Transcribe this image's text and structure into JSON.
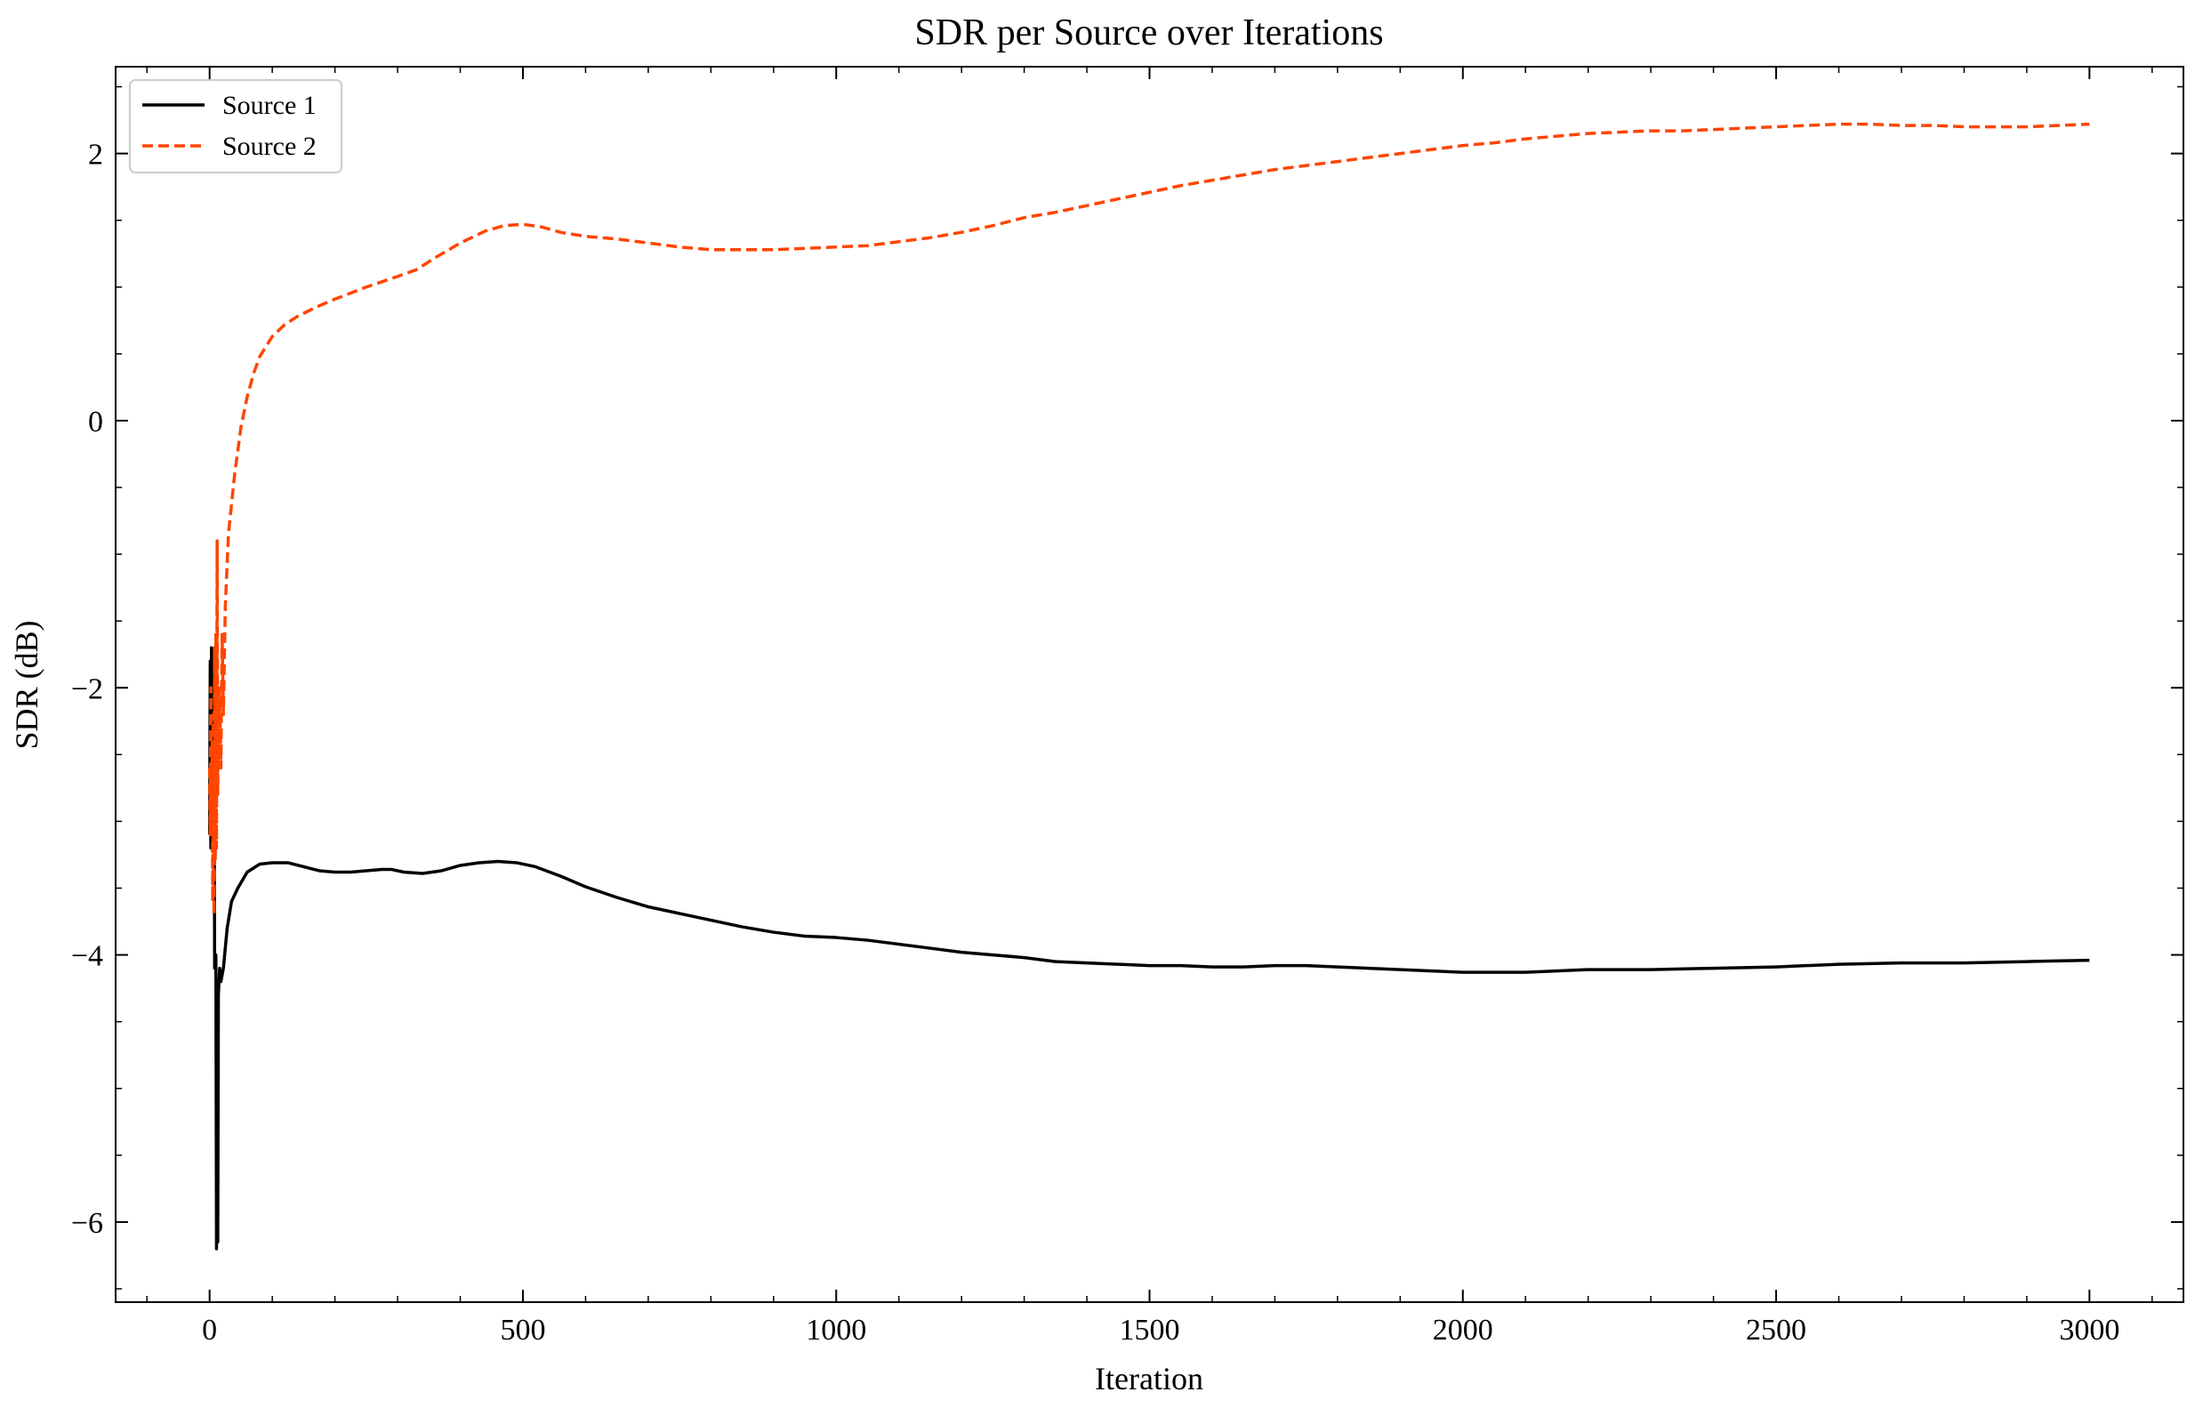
{
  "chart_data": {
    "type": "line",
    "title": "SDR per Source over Iterations",
    "xlabel": "Iteration",
    "ylabel": "SDR (dB)",
    "xlim": [
      -150,
      3150
    ],
    "ylim": [
      -6.6,
      2.65
    ],
    "xticks": [
      0,
      500,
      1000,
      1500,
      2000,
      2500,
      3000
    ],
    "xtick_labels": [
      "0",
      "500",
      "1000",
      "1500",
      "2000",
      "2500",
      "3000"
    ],
    "yticks": [
      -6,
      -4,
      -2,
      0,
      2
    ],
    "ytick_labels": [
      "−6",
      "−4",
      "−2",
      "0",
      "2"
    ],
    "legend_position": "top-left",
    "grid": false,
    "series": [
      {
        "name": "Source 1",
        "color": "#000000",
        "style": "solid",
        "points": [
          [
            0,
            -3.1
          ],
          [
            1,
            -1.8
          ],
          [
            2,
            -3.2
          ],
          [
            3,
            -1.7
          ],
          [
            4,
            -2.6
          ],
          [
            5,
            -1.9
          ],
          [
            6,
            -2.9
          ],
          [
            7,
            -2.0
          ],
          [
            8,
            -4.1
          ],
          [
            9,
            -4.1
          ],
          [
            10,
            -4.0
          ],
          [
            11,
            -6.2
          ],
          [
            12,
            -5.4
          ],
          [
            13,
            -6.15
          ],
          [
            14,
            -4.3
          ],
          [
            16,
            -4.1
          ],
          [
            18,
            -4.2
          ],
          [
            22,
            -4.1
          ],
          [
            28,
            -3.8
          ],
          [
            35,
            -3.6
          ],
          [
            45,
            -3.5
          ],
          [
            60,
            -3.38
          ],
          [
            80,
            -3.32
          ],
          [
            100,
            -3.31
          ],
          [
            125,
            -3.31
          ],
          [
            150,
            -3.34
          ],
          [
            175,
            -3.37
          ],
          [
            200,
            -3.38
          ],
          [
            225,
            -3.38
          ],
          [
            250,
            -3.37
          ],
          [
            275,
            -3.36
          ],
          [
            290,
            -3.36
          ],
          [
            310,
            -3.38
          ],
          [
            340,
            -3.39
          ],
          [
            370,
            -3.37
          ],
          [
            400,
            -3.33
          ],
          [
            430,
            -3.31
          ],
          [
            460,
            -3.3
          ],
          [
            490,
            -3.31
          ],
          [
            520,
            -3.34
          ],
          [
            560,
            -3.41
          ],
          [
            600,
            -3.49
          ],
          [
            650,
            -3.57
          ],
          [
            700,
            -3.64
          ],
          [
            750,
            -3.69
          ],
          [
            800,
            -3.74
          ],
          [
            850,
            -3.79
          ],
          [
            900,
            -3.83
          ],
          [
            950,
            -3.86
          ],
          [
            1000,
            -3.87
          ],
          [
            1050,
            -3.89
          ],
          [
            1100,
            -3.92
          ],
          [
            1150,
            -3.95
          ],
          [
            1200,
            -3.98
          ],
          [
            1250,
            -4.0
          ],
          [
            1300,
            -4.02
          ],
          [
            1350,
            -4.05
          ],
          [
            1400,
            -4.06
          ],
          [
            1450,
            -4.07
          ],
          [
            1500,
            -4.08
          ],
          [
            1550,
            -4.08
          ],
          [
            1600,
            -4.09
          ],
          [
            1650,
            -4.09
          ],
          [
            1700,
            -4.08
          ],
          [
            1750,
            -4.08
          ],
          [
            1800,
            -4.09
          ],
          [
            1850,
            -4.1
          ],
          [
            1900,
            -4.11
          ],
          [
            1950,
            -4.12
          ],
          [
            2000,
            -4.13
          ],
          [
            2050,
            -4.13
          ],
          [
            2100,
            -4.13
          ],
          [
            2150,
            -4.12
          ],
          [
            2200,
            -4.11
          ],
          [
            2300,
            -4.11
          ],
          [
            2400,
            -4.1
          ],
          [
            2500,
            -4.09
          ],
          [
            2600,
            -4.07
          ],
          [
            2700,
            -4.06
          ],
          [
            2800,
            -4.06
          ],
          [
            2900,
            -4.05
          ],
          [
            3000,
            -4.04
          ]
        ]
      },
      {
        "name": "Source 2",
        "color": "#ff4500",
        "style": "dashed",
        "points": [
          [
            0,
            -2.6
          ],
          [
            1,
            -3.1
          ],
          [
            2,
            -2.0
          ],
          [
            3,
            -3.0
          ],
          [
            4,
            -2.4
          ],
          [
            5,
            -3.6
          ],
          [
            6,
            -2.2
          ],
          [
            7,
            -3.7
          ],
          [
            8,
            -1.7
          ],
          [
            9,
            -3.3
          ],
          [
            10,
            -1.6
          ],
          [
            11,
            -3.2
          ],
          [
            12,
            -0.9
          ],
          [
            13,
            -2.8
          ],
          [
            14,
            -2.4
          ],
          [
            16,
            -2.0
          ],
          [
            18,
            -2.6
          ],
          [
            20,
            -1.6
          ],
          [
            22,
            -2.2
          ],
          [
            25,
            -1.4
          ],
          [
            30,
            -0.85
          ],
          [
            40,
            -0.4
          ],
          [
            50,
            -0.05
          ],
          [
            60,
            0.18
          ],
          [
            70,
            0.35
          ],
          [
            80,
            0.48
          ],
          [
            100,
            0.63
          ],
          [
            120,
            0.72
          ],
          [
            140,
            0.78
          ],
          [
            170,
            0.85
          ],
          [
            200,
            0.91
          ],
          [
            250,
            1.0
          ],
          [
            300,
            1.08
          ],
          [
            330,
            1.13
          ],
          [
            360,
            1.22
          ],
          [
            400,
            1.33
          ],
          [
            440,
            1.42
          ],
          [
            470,
            1.46
          ],
          [
            500,
            1.47
          ],
          [
            530,
            1.45
          ],
          [
            560,
            1.41
          ],
          [
            600,
            1.38
          ],
          [
            650,
            1.36
          ],
          [
            700,
            1.33
          ],
          [
            750,
            1.3
          ],
          [
            800,
            1.28
          ],
          [
            850,
            1.28
          ],
          [
            900,
            1.28
          ],
          [
            950,
            1.29
          ],
          [
            1000,
            1.3
          ],
          [
            1050,
            1.31
          ],
          [
            1100,
            1.34
          ],
          [
            1150,
            1.37
          ],
          [
            1200,
            1.41
          ],
          [
            1250,
            1.46
          ],
          [
            1300,
            1.52
          ],
          [
            1350,
            1.56
          ],
          [
            1400,
            1.61
          ],
          [
            1450,
            1.66
          ],
          [
            1500,
            1.71
          ],
          [
            1550,
            1.76
          ],
          [
            1600,
            1.8
          ],
          [
            1650,
            1.84
          ],
          [
            1700,
            1.88
          ],
          [
            1750,
            1.91
          ],
          [
            1800,
            1.94
          ],
          [
            1850,
            1.97
          ],
          [
            1900,
            2.0
          ],
          [
            1950,
            2.03
          ],
          [
            2000,
            2.06
          ],
          [
            2050,
            2.08
          ],
          [
            2100,
            2.11
          ],
          [
            2150,
            2.13
          ],
          [
            2200,
            2.15
          ],
          [
            2250,
            2.16
          ],
          [
            2300,
            2.17
          ],
          [
            2350,
            2.17
          ],
          [
            2400,
            2.18
          ],
          [
            2450,
            2.19
          ],
          [
            2500,
            2.2
          ],
          [
            2550,
            2.21
          ],
          [
            2600,
            2.22
          ],
          [
            2650,
            2.22
          ],
          [
            2700,
            2.21
          ],
          [
            2750,
            2.21
          ],
          [
            2800,
            2.2
          ],
          [
            2850,
            2.2
          ],
          [
            2900,
            2.2
          ],
          [
            2950,
            2.21
          ],
          [
            3000,
            2.22
          ]
        ]
      }
    ]
  }
}
